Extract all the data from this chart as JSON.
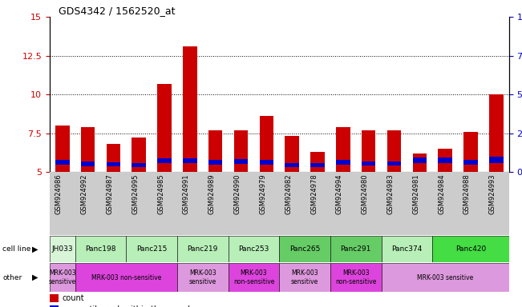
{
  "title": "GDS4342 / 1562520_at",
  "samples": [
    "GSM924986",
    "GSM924992",
    "GSM924987",
    "GSM924995",
    "GSM924985",
    "GSM924991",
    "GSM924989",
    "GSM924990",
    "GSM924979",
    "GSM924982",
    "GSM924978",
    "GSM924994",
    "GSM924980",
    "GSM924983",
    "GSM924981",
    "GSM924984",
    "GSM924988",
    "GSM924993"
  ],
  "red_values": [
    8.0,
    7.9,
    6.8,
    7.2,
    10.7,
    13.1,
    7.7,
    7.7,
    8.6,
    7.3,
    6.3,
    7.9,
    7.7,
    7.7,
    6.2,
    6.5,
    7.6,
    10.0
  ],
  "blue_bottoms": [
    5.45,
    5.35,
    5.35,
    5.3,
    5.55,
    5.55,
    5.45,
    5.5,
    5.45,
    5.3,
    5.3,
    5.45,
    5.4,
    5.4,
    5.55,
    5.55,
    5.45,
    5.55
  ],
  "blue_heights": [
    0.35,
    0.3,
    0.28,
    0.25,
    0.35,
    0.35,
    0.32,
    0.32,
    0.32,
    0.25,
    0.25,
    0.32,
    0.28,
    0.28,
    0.38,
    0.38,
    0.32,
    0.42
  ],
  "ylim_left": [
    5,
    15
  ],
  "ylim_right": [
    0,
    100
  ],
  "yticks_left": [
    5,
    7.5,
    10,
    12.5,
    15
  ],
  "yticks_right": [
    0,
    25,
    50,
    75,
    100
  ],
  "cell_lines": [
    {
      "name": "JH033",
      "start": 0,
      "end": 1,
      "color": "#d8f5d8"
    },
    {
      "name": "Panc198",
      "start": 1,
      "end": 3,
      "color": "#b8eeb8"
    },
    {
      "name": "Panc215",
      "start": 3,
      "end": 5,
      "color": "#b8eeb8"
    },
    {
      "name": "Panc219",
      "start": 5,
      "end": 7,
      "color": "#b8eeb8"
    },
    {
      "name": "Panc253",
      "start": 7,
      "end": 9,
      "color": "#b8eeb8"
    },
    {
      "name": "Panc265",
      "start": 9,
      "end": 11,
      "color": "#66cc66"
    },
    {
      "name": "Panc291",
      "start": 11,
      "end": 13,
      "color": "#66cc66"
    },
    {
      "name": "Panc374",
      "start": 13,
      "end": 15,
      "color": "#b8eeb8"
    },
    {
      "name": "Panc420",
      "start": 15,
      "end": 18,
      "color": "#44dd44"
    }
  ],
  "other_rows": [
    {
      "label": "MRK-003\nsensitive",
      "start": 0,
      "end": 1,
      "color": "#dd99dd"
    },
    {
      "label": "MRK-003 non-sensitive",
      "start": 1,
      "end": 5,
      "color": "#dd44dd"
    },
    {
      "label": "MRK-003\nsensitive",
      "start": 5,
      "end": 7,
      "color": "#dd99dd"
    },
    {
      "label": "MRK-003\nnon-sensitive",
      "start": 7,
      "end": 9,
      "color": "#dd44dd"
    },
    {
      "label": "MRK-003\nsensitive",
      "start": 9,
      "end": 11,
      "color": "#dd99dd"
    },
    {
      "label": "MRK-003\nnon-sensitive",
      "start": 11,
      "end": 13,
      "color": "#dd44dd"
    },
    {
      "label": "MRK-003 sensitive",
      "start": 13,
      "end": 18,
      "color": "#dd99dd"
    }
  ],
  "bar_width": 0.55,
  "bar_color_red": "#cc0000",
  "bar_color_blue": "#0000cc",
  "bg_color": "#ffffff",
  "tick_color_left": "#cc0000",
  "tick_color_right": "#0000cc",
  "row_bg_color": "#cccccc",
  "n_samples": 18
}
